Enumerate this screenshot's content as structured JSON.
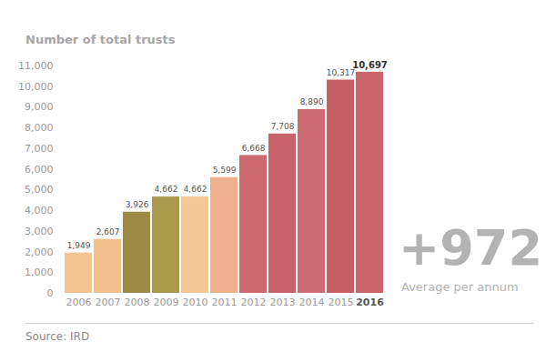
{
  "chart_data": {
    "type": "bar",
    "title": "Number of total trusts",
    "categories": [
      "2006",
      "2007",
      "2008",
      "2009",
      "2010",
      "2011",
      "2012",
      "2013",
      "2014",
      "2015",
      "2016"
    ],
    "values": [
      1949,
      2607,
      3926,
      4662,
      4662,
      5599,
      6668,
      7708,
      8890,
      10317,
      10697
    ],
    "value_labels": [
      "1,949",
      "2,607",
      "3,926",
      "4,662",
      "4,662",
      "5,599",
      "6,668",
      "7,708",
      "8,890",
      "10,317",
      "10,697"
    ],
    "colors": [
      "#f3c591",
      "#f2c08a",
      "#9c8a45",
      "#a99a4c",
      "#f3c895",
      "#eeb08e",
      "#cc6a70",
      "#c9636b",
      "#cd6d73",
      "#c75f67",
      "#c9646b"
    ],
    "ylim": [
      0,
      11000
    ],
    "yticks": [
      0,
      {
        "value": 1000,
        "label": "1,000"
      },
      {
        "value": 2000,
        "label": "2,000"
      },
      {
        "value": 3000,
        "label": "3,000"
      },
      {
        "value": 4000,
        "label": "4,000"
      },
      {
        "value": 5000,
        "label": "5,000"
      },
      {
        "value": 6000,
        "label": "6,000"
      },
      {
        "value": 7000,
        "label": "7,000"
      },
      {
        "value": 8000,
        "label": "8,000"
      },
      {
        "value": 9000,
        "label": "9,000"
      },
      {
        "value": 10000,
        "label": "10,000"
      },
      {
        "value": 11000,
        "label": "11,000"
      }
    ],
    "grid": false,
    "data_labels": true,
    "annotations": [
      "+972",
      "Average per annum"
    ],
    "source": "Source: IRD"
  }
}
